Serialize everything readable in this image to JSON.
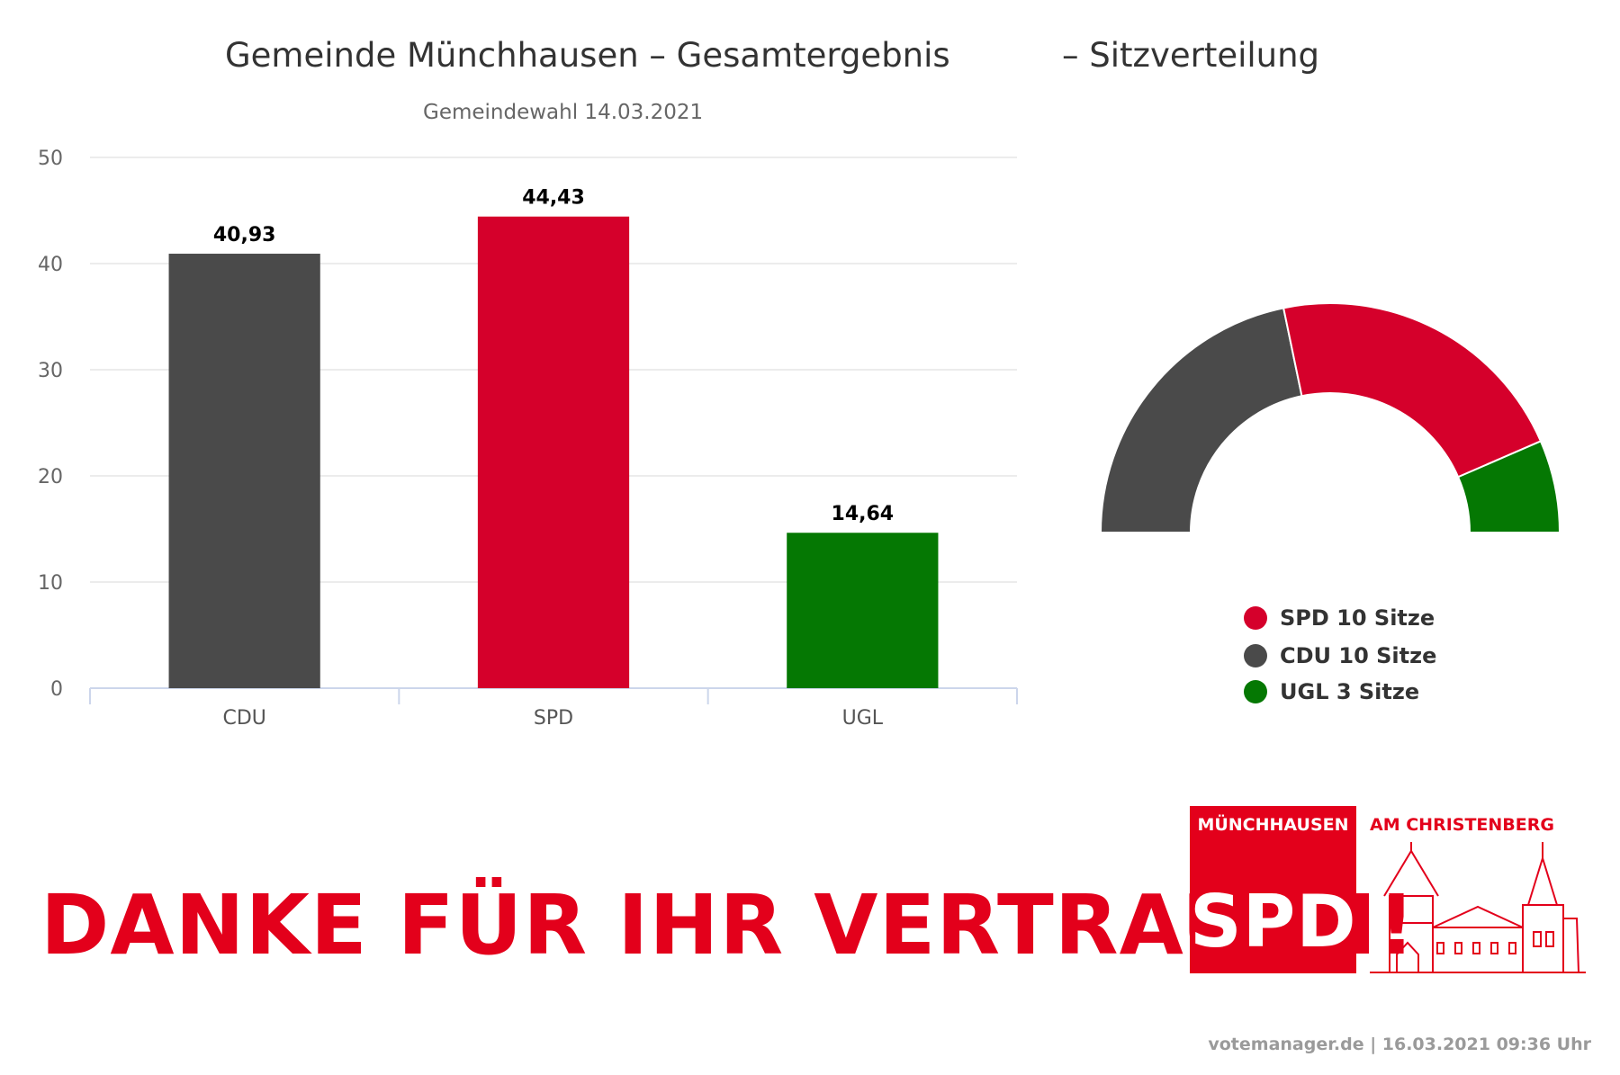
{
  "chart_data": [
    {
      "type": "bar",
      "title": "Gemeinde Münchhausen – Gesamtergebnis",
      "subtitle": "Gemeindewahl 14.03.2021",
      "categories": [
        "CDU",
        "SPD",
        "UGL"
      ],
      "values": [
        40.93,
        44.43,
        14.64
      ],
      "value_labels": [
        "40,93",
        "44,43",
        "14,64"
      ],
      "colors": [
        "#4a4a4a",
        "#d5002b",
        "#057803"
      ],
      "ylim": [
        0,
        50
      ],
      "yticks": [
        0,
        10,
        20,
        30,
        40,
        50
      ],
      "grid": true,
      "xlabel": "",
      "ylabel": ""
    },
    {
      "type": "pie",
      "variant": "semicircle",
      "title": "– Sitzverteilung",
      "categories": [
        "CDU",
        "SPD",
        "UGL"
      ],
      "values": [
        10,
        10,
        3
      ],
      "colors": [
        "#4a4a4a",
        "#d5002b",
        "#057803"
      ],
      "legend": [
        {
          "label": "SPD 10 Sitze",
          "color": "#d5002b"
        },
        {
          "label": "CDU 10 Sitze",
          "color": "#4a4a4a"
        },
        {
          "label": "UGL 3 Sitze",
          "color": "#057803"
        }
      ],
      "legend_placement": "bottom"
    }
  ],
  "banner": {
    "text": "DANKE FÜR IHR VERTRAUEN!",
    "color": "#e3001b"
  },
  "logo": {
    "town": "MÜNCHHAUSEN",
    "party": "SPD",
    "region": "AM CHRISTENBERG",
    "color": "#e3001b"
  },
  "footer": {
    "credit": "votemanager.de | 16.03.2021 09:36 Uhr"
  }
}
